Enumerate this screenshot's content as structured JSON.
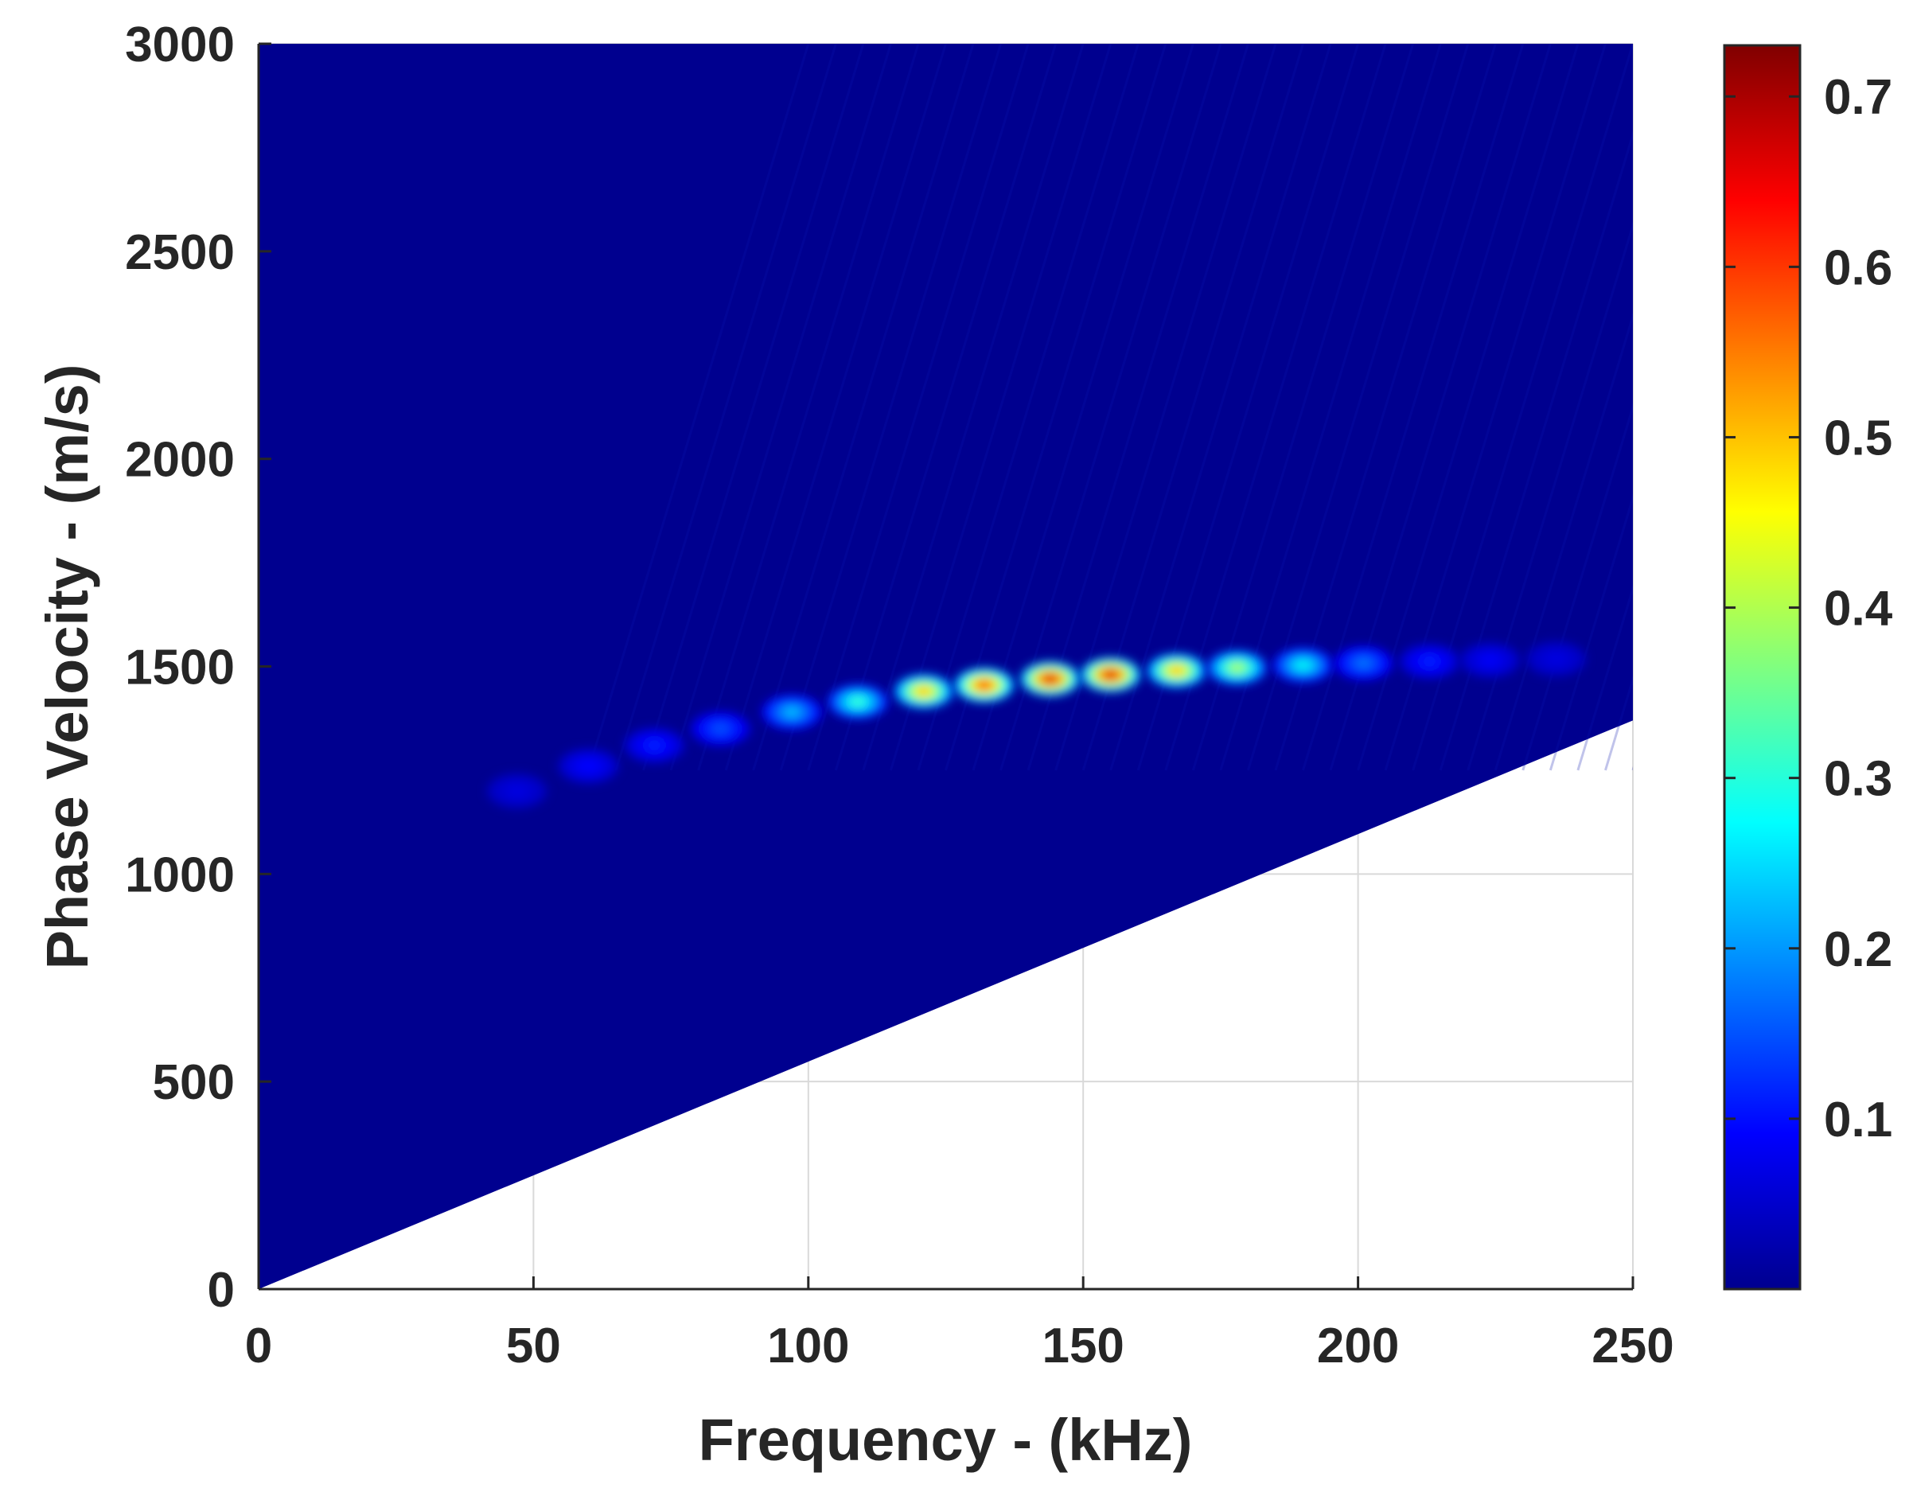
{
  "chart_data": {
    "type": "heatmap",
    "title": "",
    "xlabel": "Frequency - (kHz)",
    "ylabel": "Phase Velocity - (m/s)",
    "xlim": [
      0,
      250
    ],
    "ylim": [
      0,
      3000
    ],
    "x_ticks": [
      "0",
      "50",
      "100",
      "150",
      "200",
      "250"
    ],
    "y_ticks": [
      "0",
      "500",
      "1000",
      "1500",
      "2000",
      "2500",
      "3000"
    ],
    "grid": true,
    "colormap": "jet",
    "background_color": "#00008f",
    "colorbar": {
      "range": [
        0,
        0.73
      ],
      "ticks": [
        "0.1",
        "0.2",
        "0.3",
        "0.4",
        "0.5",
        "0.6",
        "0.7"
      ]
    },
    "masked_region": {
      "description_free": true,
      "boundary_line": {
        "x": [
          0,
          250
        ],
        "y": [
          0,
          1370
        ]
      }
    },
    "peaks": [
      {
        "x": 47,
        "y": 1200,
        "value": 0.04
      },
      {
        "x": 60,
        "y": 1260,
        "value": 0.07
      },
      {
        "x": 72,
        "y": 1310,
        "value": 0.09
      },
      {
        "x": 84,
        "y": 1350,
        "value": 0.13
      },
      {
        "x": 97,
        "y": 1390,
        "value": 0.22
      },
      {
        "x": 109,
        "y": 1415,
        "value": 0.32
      },
      {
        "x": 121,
        "y": 1440,
        "value": 0.55
      },
      {
        "x": 132,
        "y": 1455,
        "value": 0.66
      },
      {
        "x": 144,
        "y": 1470,
        "value": 0.72
      },
      {
        "x": 155,
        "y": 1480,
        "value": 0.72
      },
      {
        "x": 167,
        "y": 1490,
        "value": 0.55
      },
      {
        "x": 178,
        "y": 1497,
        "value": 0.42
      },
      {
        "x": 190,
        "y": 1503,
        "value": 0.28
      },
      {
        "x": 201,
        "y": 1508,
        "value": 0.16
      },
      {
        "x": 213,
        "y": 1512,
        "value": 0.09
      },
      {
        "x": 224,
        "y": 1515,
        "value": 0.06
      },
      {
        "x": 236,
        "y": 1518,
        "value": 0.04
      }
    ]
  }
}
